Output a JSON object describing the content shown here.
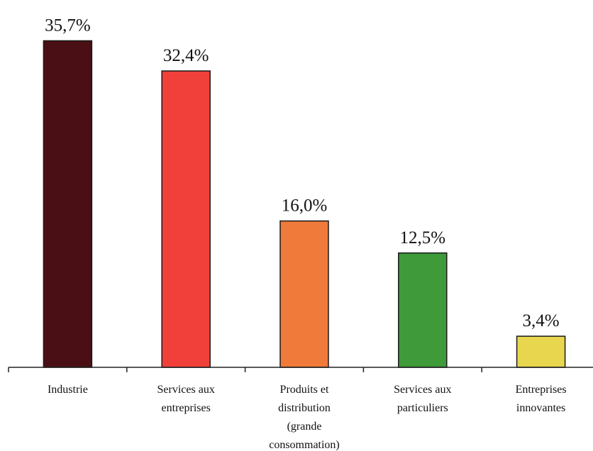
{
  "chart_data": {
    "type": "bar",
    "title": "",
    "xlabel": "",
    "ylabel": "",
    "ylim": [
      0,
      36
    ],
    "grid": false,
    "legend": "none",
    "categories": [
      [
        "Industrie"
      ],
      [
        "Services aux",
        "entreprises"
      ],
      [
        "Produits et",
        "distribution",
        "(grande",
        "consommation)"
      ],
      [
        "Services aux",
        "particuliers"
      ],
      [
        "Entreprises",
        "innovantes"
      ]
    ],
    "values": [
      35.7,
      32.4,
      16.0,
      12.5,
      3.4
    ],
    "value_labels": [
      "35,7%",
      "32,4%",
      "16,0%",
      "12,5%",
      "3,4%"
    ],
    "colors": [
      "#4a0f14",
      "#f1403a",
      "#f07a3a",
      "#3f9a3a",
      "#e8d64e"
    ]
  }
}
